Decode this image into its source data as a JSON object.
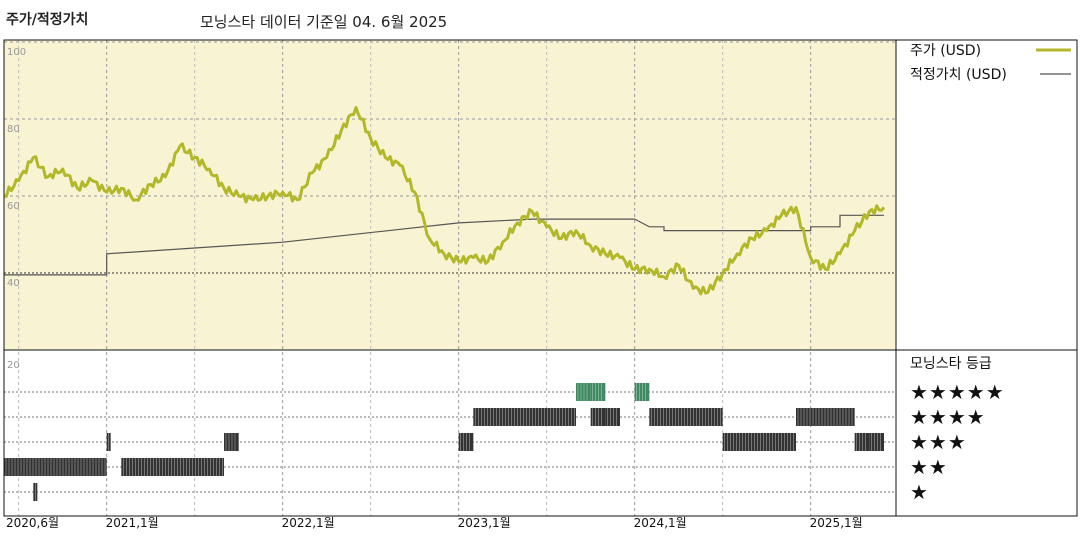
{
  "header": {
    "title": "주가/적정가치",
    "subtitle": "모닝스타 데이터 기준일 04. 6월 2025"
  },
  "colors": {
    "price": "#b3b82a",
    "fair": "#555555",
    "panel_bg": "#f8f3d2",
    "rating_dark": "#333333",
    "rating_green": "#3f8a62"
  },
  "chart_data": [
    {
      "type": "line",
      "x_start": "2020-06",
      "x_end": "2025-06",
      "ylim": [
        20,
        100
      ],
      "yticks": [
        "100",
        "80",
        "60",
        "40"
      ],
      "grid": "dashed",
      "legend_position": "right",
      "series": [
        {
          "name": "주가 (USD)",
          "points": [
            [
              "2020-06",
              60
            ],
            [
              "2020-07",
              64
            ],
            [
              "2020-08",
              70
            ],
            [
              "2020-09",
              65
            ],
            [
              "2020-10",
              67
            ],
            [
              "2020-11",
              62
            ],
            [
              "2020-12",
              64
            ],
            [
              "2021-01",
              61
            ],
            [
              "2021-02",
              62
            ],
            [
              "2021-03",
              59
            ],
            [
              "2021-04",
              63
            ],
            [
              "2021-05",
              65
            ],
            [
              "2021-06",
              73
            ],
            [
              "2021-07",
              70
            ],
            [
              "2021-08",
              67
            ],
            [
              "2021-09",
              62
            ],
            [
              "2021-10",
              60
            ],
            [
              "2021-11",
              59
            ],
            [
              "2021-12",
              60
            ],
            [
              "2022-01",
              61
            ],
            [
              "2022-02",
              59
            ],
            [
              "2022-03",
              66
            ],
            [
              "2022-04",
              70
            ],
            [
              "2022-05",
              77
            ],
            [
              "2022-06",
              83
            ],
            [
              "2022-07",
              75
            ],
            [
              "2022-08",
              70
            ],
            [
              "2022-09",
              68
            ],
            [
              "2022-10",
              61
            ],
            [
              "2022-11",
              49
            ],
            [
              "2022-12",
              45
            ],
            [
              "2023-01",
              43
            ],
            [
              "2023-02",
              44
            ],
            [
              "2023-03",
              43
            ],
            [
              "2023-04",
              48
            ],
            [
              "2023-05",
              53
            ],
            [
              "2023-06",
              56
            ],
            [
              "2023-07",
              52
            ],
            [
              "2023-08",
              49
            ],
            [
              "2023-09",
              51
            ],
            [
              "2023-10",
              47
            ],
            [
              "2023-11",
              45
            ],
            [
              "2023-12",
              44
            ],
            [
              "2024-01",
              41
            ],
            [
              "2024-02",
              41
            ],
            [
              "2024-03",
              39
            ],
            [
              "2024-04",
              42
            ],
            [
              "2024-05",
              36
            ],
            [
              "2024-06",
              35
            ],
            [
              "2024-07",
              40
            ],
            [
              "2024-08",
              45
            ],
            [
              "2024-09",
              49
            ],
            [
              "2024-10",
              51
            ],
            [
              "2024-11",
              55
            ],
            [
              "2024-12",
              57
            ],
            [
              "2025-01",
              44
            ],
            [
              "2025-02",
              41
            ],
            [
              "2025-03",
              45
            ],
            [
              "2025-04",
              51
            ],
            [
              "2025-05",
              56
            ],
            [
              "2025-06",
              57
            ]
          ]
        },
        {
          "name": "적정가치 (USD)",
          "points": [
            [
              "2020-06",
              39.5
            ],
            [
              "2021-01",
              39.5
            ],
            [
              "2021-01",
              45
            ],
            [
              "2022-01",
              48
            ],
            [
              "2023-01",
              53
            ],
            [
              "2023-06",
              54
            ],
            [
              "2024-01",
              54
            ],
            [
              "2024-02",
              52
            ],
            [
              "2024-03",
              52
            ],
            [
              "2024-03",
              51
            ],
            [
              "2025-01",
              51
            ],
            [
              "2025-01",
              52
            ],
            [
              "2025-03",
              52
            ],
            [
              "2025-03",
              55
            ],
            [
              "2025-06",
              55
            ]
          ]
        }
      ]
    },
    {
      "type": "heatmap",
      "title": "모닝스타 등급",
      "levels": [
        "★★★★★",
        "★★★★",
        "★★★",
        "★★",
        "★"
      ],
      "ylabel_top": "20",
      "x_labels": [
        "2020,6월",
        "2021,1월",
        "2022,1월",
        "2023,1월",
        "2024,1월",
        "2025,1월"
      ],
      "x_label_dates": [
        "2020-06",
        "2021-01",
        "2022-01",
        "2023-01",
        "2024-01",
        "2025-01"
      ],
      "rating_periods": [
        {
          "from": "2020-06",
          "to": "2021-01",
          "stars": 2
        },
        {
          "from": "2020-08",
          "to": "2020-08",
          "stars": 1
        },
        {
          "from": "2021-01",
          "to": "2021-01",
          "stars": 3
        },
        {
          "from": "2021-02",
          "to": "2021-09",
          "stars": 2
        },
        {
          "from": "2021-09",
          "to": "2021-10",
          "stars": 3
        },
        {
          "from": "2023-01",
          "to": "2023-02",
          "stars": 3
        },
        {
          "from": "2023-02",
          "to": "2023-09",
          "stars": 4
        },
        {
          "from": "2023-09",
          "to": "2023-10",
          "stars": 5
        },
        {
          "from": "2023-10",
          "to": "2023-11",
          "stars": 5
        },
        {
          "from": "2023-10",
          "to": "2023-11",
          "stars": 4
        },
        {
          "from": "2023-11",
          "to": "2023-12",
          "stars": 4
        },
        {
          "from": "2024-01",
          "to": "2024-01",
          "stars": 5
        },
        {
          "from": "2024-01",
          "to": "2024-02",
          "stars": 5
        },
        {
          "from": "2024-02",
          "to": "2024-07",
          "stars": 4
        },
        {
          "from": "2024-07",
          "to": "2024-12",
          "stars": 3
        },
        {
          "from": "2024-12",
          "to": "2025-04",
          "stars": 4
        },
        {
          "from": "2025-04",
          "to": "2025-05",
          "stars": 3
        },
        {
          "from": "2025-05",
          "to": "2025-06",
          "stars": 3
        }
      ],
      "green_level": 5
    }
  ]
}
